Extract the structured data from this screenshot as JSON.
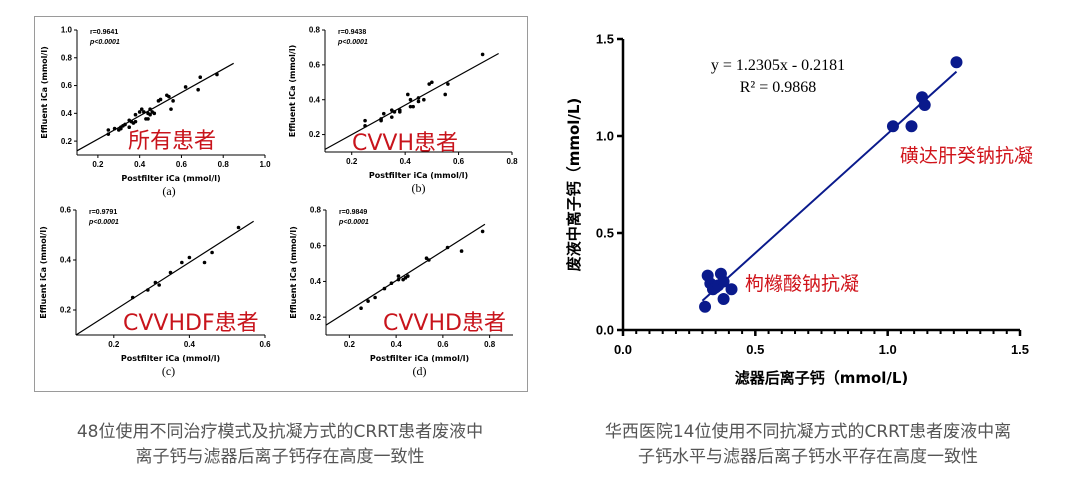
{
  "chart_data": [
    {
      "id": "a",
      "type": "scatter",
      "panel_label": "(a)",
      "annotation": "所有患者",
      "stats": [
        "r=0.9641",
        "p<0.0001"
      ],
      "xlabel": "Postfilter iCa (mmol/l)",
      "ylabel": "Effluent iCa (mmol/l)",
      "xlim": [
        0.1,
        1.0
      ],
      "ylim": [
        0.1,
        1.0
      ],
      "xticks": [
        "0.2",
        "0.4",
        "0.6",
        "0.8",
        "1.0"
      ],
      "yticks": [
        "0.2",
        "0.4",
        "0.6",
        "0.8",
        "1.0"
      ],
      "fit_line": [
        [
          0.1,
          0.13
        ],
        [
          0.85,
          0.76
        ]
      ],
      "points": [
        [
          0.25,
          0.28
        ],
        [
          0.25,
          0.25
        ],
        [
          0.28,
          0.29
        ],
        [
          0.3,
          0.28
        ],
        [
          0.31,
          0.3
        ],
        [
          0.31,
          0.29
        ],
        [
          0.32,
          0.31
        ],
        [
          0.33,
          0.32
        ],
        [
          0.35,
          0.3
        ],
        [
          0.35,
          0.35
        ],
        [
          0.36,
          0.34
        ],
        [
          0.37,
          0.33
        ],
        [
          0.38,
          0.39
        ],
        [
          0.38,
          0.34
        ],
        [
          0.4,
          0.41
        ],
        [
          0.41,
          0.43
        ],
        [
          0.42,
          0.41
        ],
        [
          0.43,
          0.36
        ],
        [
          0.44,
          0.36
        ],
        [
          0.44,
          0.4
        ],
        [
          0.45,
          0.43
        ],
        [
          0.45,
          0.39
        ],
        [
          0.46,
          0.41
        ],
        [
          0.47,
          0.4
        ],
        [
          0.49,
          0.49
        ],
        [
          0.5,
          0.5
        ],
        [
          0.53,
          0.53
        ],
        [
          0.54,
          0.52
        ],
        [
          0.55,
          0.43
        ],
        [
          0.56,
          0.49
        ],
        [
          0.62,
          0.59
        ],
        [
          0.68,
          0.57
        ],
        [
          0.69,
          0.66
        ],
        [
          0.77,
          0.68
        ]
      ]
    },
    {
      "id": "b",
      "type": "scatter",
      "panel_label": "(b)",
      "annotation": "CVVH患者",
      "stats": [
        "r=0.9438",
        "p<0.0001"
      ],
      "xlabel": "Postfilter iCa (mmol/l)",
      "ylabel": "Effluent iCa (mmol/l)",
      "xlim": [
        0.1,
        0.8
      ],
      "ylim": [
        0.1,
        0.8
      ],
      "xticks": [
        "0.2",
        "0.4",
        "0.6",
        "0.8"
      ],
      "yticks": [
        "0.2",
        "0.4",
        "0.6",
        "0.8"
      ],
      "fit_line": [
        [
          0.1,
          0.115
        ],
        [
          0.75,
          0.665
        ]
      ],
      "points": [
        [
          0.25,
          0.28
        ],
        [
          0.25,
          0.25
        ],
        [
          0.31,
          0.28
        ],
        [
          0.31,
          0.29
        ],
        [
          0.32,
          0.32
        ],
        [
          0.35,
          0.3
        ],
        [
          0.35,
          0.34
        ],
        [
          0.36,
          0.33
        ],
        [
          0.38,
          0.34
        ],
        [
          0.38,
          0.33
        ],
        [
          0.41,
          0.43
        ],
        [
          0.42,
          0.4
        ],
        [
          0.42,
          0.36
        ],
        [
          0.43,
          0.36
        ],
        [
          0.45,
          0.39
        ],
        [
          0.45,
          0.41
        ],
        [
          0.47,
          0.4
        ],
        [
          0.49,
          0.49
        ],
        [
          0.5,
          0.5
        ],
        [
          0.55,
          0.43
        ],
        [
          0.56,
          0.49
        ],
        [
          0.69,
          0.66
        ]
      ]
    },
    {
      "id": "c",
      "type": "scatter",
      "panel_label": "(c)",
      "annotation": "CVVHDF患者",
      "stats": [
        "r=0.9791",
        "p<0.0001"
      ],
      "xlabel": "Postfilter iCa (mmol/l)",
      "ylabel": "Effluent iCa (mmol/l)",
      "xlim": [
        0.1,
        0.6
      ],
      "ylim": [
        0.1,
        0.6
      ],
      "xticks": [
        "0.2",
        "0.4",
        "0.6"
      ],
      "yticks": [
        "0.2",
        "0.4",
        "0.6"
      ],
      "fit_line": [
        [
          0.1,
          0.1
        ],
        [
          0.57,
          0.555
        ]
      ],
      "points": [
        [
          0.25,
          0.25
        ],
        [
          0.29,
          0.28
        ],
        [
          0.31,
          0.31
        ],
        [
          0.32,
          0.3
        ],
        [
          0.35,
          0.35
        ],
        [
          0.38,
          0.39
        ],
        [
          0.4,
          0.41
        ],
        [
          0.44,
          0.39
        ],
        [
          0.46,
          0.43
        ],
        [
          0.53,
          0.53
        ]
      ]
    },
    {
      "id": "d",
      "type": "scatter",
      "panel_label": "(d)",
      "annotation": "CVVHD患者",
      "stats": [
        "r=0.9849",
        "p<0.0001"
      ],
      "xlabel": "Postfilter iCa (mmol/l)",
      "ylabel": "Effluent iCa (mmol/l)",
      "xlim": [
        0.1,
        0.9
      ],
      "ylim": [
        0.1,
        0.8
      ],
      "xticks": [
        "0.2",
        "0.4",
        "0.6",
        "0.8"
      ],
      "yticks": [
        "0.2",
        "0.4",
        "0.6",
        "0.8"
      ],
      "fit_line": [
        [
          0.1,
          0.155
        ],
        [
          0.78,
          0.72
        ]
      ],
      "points": [
        [
          0.25,
          0.25
        ],
        [
          0.28,
          0.29
        ],
        [
          0.31,
          0.31
        ],
        [
          0.35,
          0.36
        ],
        [
          0.38,
          0.39
        ],
        [
          0.41,
          0.41
        ],
        [
          0.41,
          0.43
        ],
        [
          0.43,
          0.41
        ],
        [
          0.44,
          0.42
        ],
        [
          0.45,
          0.43
        ],
        [
          0.53,
          0.53
        ],
        [
          0.54,
          0.52
        ],
        [
          0.62,
          0.59
        ],
        [
          0.68,
          0.57
        ],
        [
          0.77,
          0.68
        ]
      ]
    },
    {
      "id": "e",
      "type": "scatter",
      "equation": "y = 1.2305x - 0.2181",
      "r2": "R² = 0.9868",
      "annotations": [
        "磺达肝癸钠抗凝",
        "枸橼酸钠抗凝"
      ],
      "xlabel": "滤器后离子钙（mmol/L)",
      "ylabel": "废液中离子钙（mmol/L)",
      "xlim": [
        0,
        1.5
      ],
      "ylim": [
        0,
        1.5
      ],
      "xticks": [
        "0.0",
        "0.5",
        "1.0",
        "1.5"
      ],
      "yticks": [
        "0.0",
        "0.5",
        "1.0",
        "1.5"
      ],
      "fit_line": [
        [
          0.3,
          0.151
        ],
        [
          1.26,
          1.332
        ]
      ],
      "color": "#0a1a8c",
      "annotation_color": "#d0141b",
      "points": [
        [
          0.31,
          0.12
        ],
        [
          0.32,
          0.28
        ],
        [
          0.33,
          0.24
        ],
        [
          0.34,
          0.21
        ],
        [
          0.35,
          0.22
        ],
        [
          0.36,
          0.23
        ],
        [
          0.37,
          0.29
        ],
        [
          0.38,
          0.25
        ],
        [
          0.38,
          0.16
        ],
        [
          0.41,
          0.21
        ],
        [
          1.02,
          1.05
        ],
        [
          1.09,
          1.05
        ],
        [
          1.13,
          1.2
        ],
        [
          1.14,
          1.16
        ],
        [
          1.26,
          1.38
        ]
      ]
    }
  ],
  "captions": {
    "left": [
      "48位使用不同治疗模式及抗凝方式的CRRT患者废液中",
      "离子钙与滤器后离子钙存在高度一致性"
    ],
    "right": [
      "华西医院14位使用不同抗凝方式的CRRT患者废液中离",
      "子钙水平与滤器后离子钙水平存在高度一致性"
    ]
  }
}
